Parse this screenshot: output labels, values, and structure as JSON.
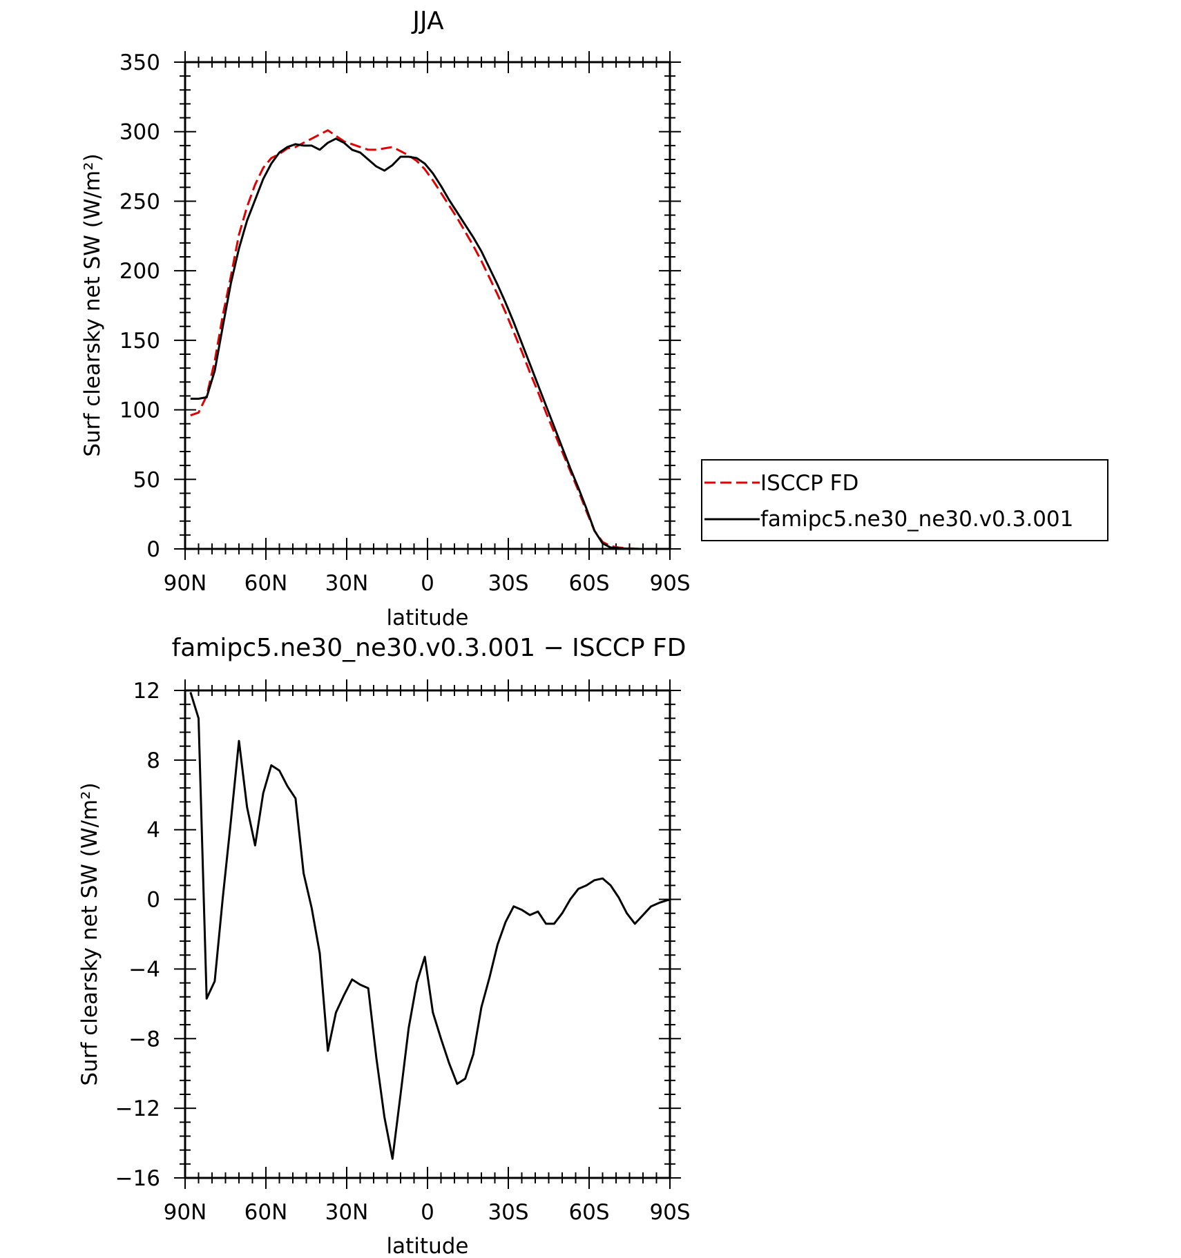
{
  "chart_data": [
    {
      "type": "line",
      "title": "JJA",
      "xlabel": "latitude",
      "ylabel": "Surf clearsky net SW (W/m²)",
      "xlim": [
        90,
        -90
      ],
      "ylim": [
        0,
        350
      ],
      "x_ticks": [
        90,
        60,
        30,
        0,
        -30,
        -60,
        -90
      ],
      "x_tick_labels": [
        "90N",
        "60N",
        "30N",
        "0",
        "30S",
        "60S",
        "90S"
      ],
      "y_ticks": [
        0,
        50,
        100,
        150,
        200,
        250,
        300,
        350
      ],
      "y_tick_labels": [
        "0",
        "50",
        "100",
        "150",
        "200",
        "250",
        "300",
        "350"
      ],
      "legend_position": "right",
      "series": [
        {
          "name": "ISCCP FD",
          "color": "#e00000",
          "dash": "dashed",
          "points": [
            [
              88,
              96
            ],
            [
              85,
              98
            ],
            [
              82,
              110
            ],
            [
              79,
              135
            ],
            [
              76,
              168
            ],
            [
              73,
              196
            ],
            [
              70,
              226
            ],
            [
              67,
              246
            ],
            [
              64,
              262
            ],
            [
              61,
              274
            ],
            [
              58,
              281
            ],
            [
              55,
              284
            ],
            [
              52,
              288
            ],
            [
              49,
              289
            ],
            [
              46,
              292
            ],
            [
              43,
              295
            ],
            [
              40,
              298
            ],
            [
              37,
              301
            ],
            [
              34,
              297
            ],
            [
              31,
              293
            ],
            [
              28,
              291
            ],
            [
              25,
              289
            ],
            [
              22,
              287
            ],
            [
              19,
              287
            ],
            [
              16,
              288
            ],
            [
              13,
              289
            ],
            [
              10,
              286
            ],
            [
              7,
              283
            ],
            [
              4,
              279
            ],
            [
              1,
              273
            ],
            [
              -2,
              265
            ],
            [
              -5,
              256
            ],
            [
              -8,
              247
            ],
            [
              -11,
              238
            ],
            [
              -14,
              228
            ],
            [
              -17,
              218
            ],
            [
              -20,
              207
            ],
            [
              -23,
              195
            ],
            [
              -26,
              183
            ],
            [
              -29,
              170
            ],
            [
              -32,
              156
            ],
            [
              -35,
              142
            ],
            [
              -38,
              127
            ],
            [
              -41,
              113
            ],
            [
              -44,
              98
            ],
            [
              -47,
              84
            ],
            [
              -50,
              70
            ],
            [
              -53,
              56
            ],
            [
              -56,
              42
            ],
            [
              -59,
              27
            ],
            [
              -62,
              13
            ],
            [
              -65,
              5
            ],
            [
              -68,
              2
            ],
            [
              -71,
              1
            ],
            [
              -74,
              0.5
            ],
            [
              -77,
              0.2
            ],
            [
              -80,
              0
            ],
            [
              -83,
              0
            ],
            [
              -86,
              0
            ],
            [
              -88,
              0
            ]
          ]
        },
        {
          "name": "famipc5.ne30_ne30.v0.3.001",
          "color": "#000000",
          "dash": "solid",
          "points": [
            [
              88,
              108
            ],
            [
              85,
              108
            ],
            [
              82,
              109
            ],
            [
              79,
              128
            ],
            [
              76,
              160
            ],
            [
              73,
              191
            ],
            [
              70,
              216
            ],
            [
              67,
              236
            ],
            [
              64,
              251
            ],
            [
              61,
              266
            ],
            [
              58,
              277
            ],
            [
              55,
              285
            ],
            [
              52,
              289
            ],
            [
              49,
              291
            ],
            [
              46,
              290
            ],
            [
              43,
              290
            ],
            [
              40,
              287
            ],
            [
              37,
              292
            ],
            [
              34,
              295
            ],
            [
              31,
              292
            ],
            [
              28,
              287
            ],
            [
              25,
              285
            ],
            [
              22,
              280
            ],
            [
              19,
              275
            ],
            [
              16,
              272
            ],
            [
              13,
              276
            ],
            [
              10,
              282
            ],
            [
              7,
              282
            ],
            [
              4,
              281
            ],
            [
              1,
              277
            ],
            [
              -2,
              270
            ],
            [
              -5,
              261
            ],
            [
              -8,
              251
            ],
            [
              -11,
              242
            ],
            [
              -14,
              233
            ],
            [
              -17,
              224
            ],
            [
              -20,
              214
            ],
            [
              -23,
              202
            ],
            [
              -26,
              190
            ],
            [
              -29,
              177
            ],
            [
              -32,
              163
            ],
            [
              -35,
              148
            ],
            [
              -38,
              133
            ],
            [
              -41,
              118
            ],
            [
              -44,
              103
            ],
            [
              -47,
              88
            ],
            [
              -50,
              73
            ],
            [
              -53,
              58
            ],
            [
              -56,
              44
            ],
            [
              -59,
              29
            ],
            [
              -62,
              13
            ],
            [
              -65,
              4
            ],
            [
              -68,
              1
            ],
            [
              -71,
              0.5
            ],
            [
              -74,
              0.2
            ],
            [
              -77,
              0
            ],
            [
              -80,
              0
            ],
            [
              -83,
              0
            ],
            [
              -86,
              0
            ],
            [
              -88,
              0
            ]
          ]
        }
      ]
    },
    {
      "type": "line",
      "title": "famipc5.ne30_ne30.v0.3.001 − ISCCP FD",
      "xlabel": "latitude",
      "ylabel": "Surf clearsky net SW (W/m²)",
      "xlim": [
        90,
        -90
      ],
      "ylim": [
        -16,
        12
      ],
      "x_ticks": [
        90,
        60,
        30,
        0,
        -30,
        -60,
        -90
      ],
      "x_tick_labels": [
        "90N",
        "60N",
        "30N",
        "0",
        "30S",
        "60S",
        "90S"
      ],
      "y_ticks": [
        -16,
        -12,
        -8,
        -4,
        0,
        4,
        8,
        12
      ],
      "y_tick_labels": [
        "−16",
        "−12",
        "−8",
        "−4",
        "0",
        "4",
        "8",
        "12"
      ],
      "series": [
        {
          "color": "#000000",
          "dash": "solid",
          "points": [
            [
              88,
              11.9
            ],
            [
              85,
              10.4
            ],
            [
              82,
              -5.7
            ],
            [
              79,
              -4.7
            ],
            [
              76,
              0.1
            ],
            [
              73,
              4.5
            ],
            [
              70,
              9.1
            ],
            [
              67,
              5.3
            ],
            [
              64,
              3.1
            ],
            [
              61,
              6.1
            ],
            [
              58,
              7.7
            ],
            [
              55,
              7.4
            ],
            [
              52,
              6.5
            ],
            [
              49,
              5.8
            ],
            [
              46,
              1.5
            ],
            [
              43,
              -0.5
            ],
            [
              40,
              -3.1
            ],
            [
              37,
              -8.7
            ],
            [
              34,
              -6.5
            ],
            [
              31,
              -5.5
            ],
            [
              28,
              -4.6
            ],
            [
              25,
              -4.9
            ],
            [
              22,
              -5.1
            ],
            [
              19,
              -9.1
            ],
            [
              16,
              -12.5
            ],
            [
              13,
              -14.9
            ],
            [
              10,
              -11.2
            ],
            [
              7,
              -7.4
            ],
            [
              4,
              -4.8
            ],
            [
              1,
              -3.3
            ],
            [
              -2,
              -6.5
            ],
            [
              -5,
              -8.0
            ],
            [
              -8,
              -9.4
            ],
            [
              -11,
              -10.6
            ],
            [
              -14,
              -10.3
            ],
            [
              -17,
              -8.9
            ],
            [
              -20,
              -6.2
            ],
            [
              -23,
              -4.5
            ],
            [
              -26,
              -2.6
            ],
            [
              -29,
              -1.3
            ],
            [
              -32,
              -0.4
            ],
            [
              -35,
              -0.6
            ],
            [
              -38,
              -0.9
            ],
            [
              -41,
              -0.7
            ],
            [
              -44,
              -1.4
            ],
            [
              -47,
              -1.4
            ],
            [
              -50,
              -0.8
            ],
            [
              -53,
              0.0
            ],
            [
              -56,
              0.6
            ],
            [
              -59,
              0.8
            ],
            [
              -62,
              1.1
            ],
            [
              -65,
              1.2
            ],
            [
              -68,
              0.8
            ],
            [
              -71,
              0.1
            ],
            [
              -74,
              -0.8
            ],
            [
              -77,
              -1.4
            ],
            [
              -80,
              -0.9
            ],
            [
              -83,
              -0.4
            ],
            [
              -86,
              -0.2
            ],
            [
              -89,
              -0.05
            ],
            [
              -92,
              0
            ],
            [
              -95,
              0
            ],
            [
              -98,
              0
            ]
          ]
        }
      ]
    }
  ]
}
